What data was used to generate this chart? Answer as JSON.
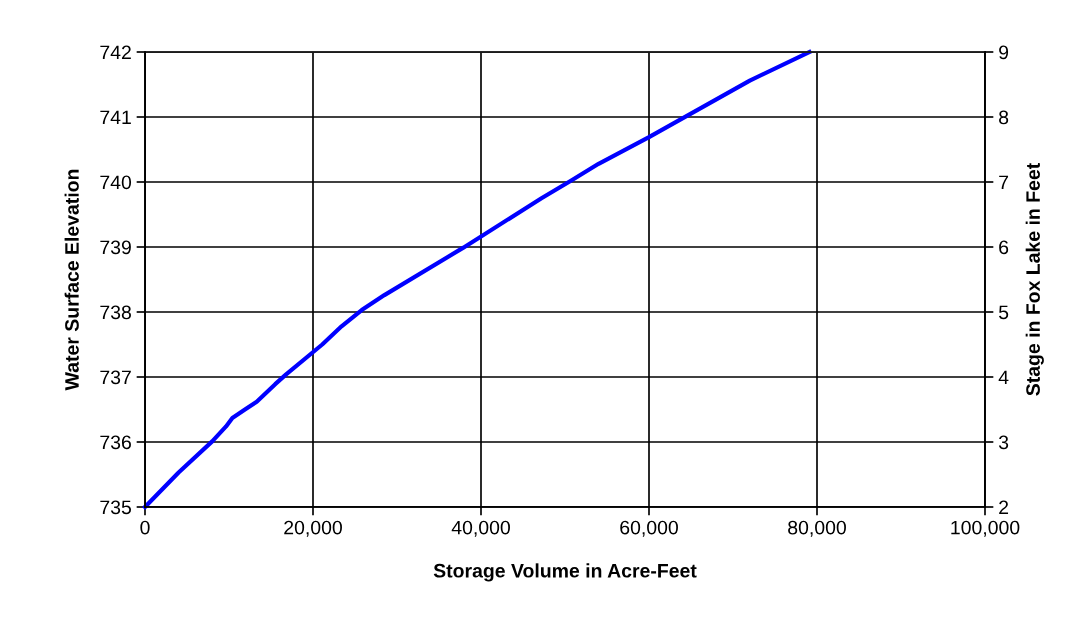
{
  "chart_data": {
    "type": "line",
    "xlabel": "Storage Volume in Acre-Feet",
    "ylabel": "Water Surface Elevation",
    "y2label": "Stage in Fox Lake in Feet",
    "x": [
      0,
      4000,
      8000,
      9650,
      10400,
      11900,
      13300,
      15500,
      16800,
      21100,
      23400,
      25800,
      28500,
      37900,
      47200,
      50700,
      54000,
      60000,
      72000,
      79100
    ],
    "series": [
      {
        "color": "#0000ff",
        "values": [
          735,
          735.53,
          736.01,
          736.24,
          736.37,
          736.5,
          736.62,
          736.89,
          737.04,
          737.5,
          737.78,
          738.03,
          738.26,
          738.99,
          739.75,
          740.02,
          740.28,
          740.69,
          741.56,
          742
        ]
      }
    ],
    "xlim": [
      0,
      100000
    ],
    "xticks": [
      0,
      {
        "value": 20000,
        "label": "20,000"
      },
      {
        "value": 40000,
        "label": "40,000"
      },
      {
        "value": 60000,
        "label": "60,000"
      },
      {
        "value": 80000,
        "label": "80,000"
      },
      {
        "value": 100000,
        "label": "100,000"
      }
    ],
    "ylim": [
      735,
      742
    ],
    "yticks": [
      735,
      736,
      737,
      738,
      739,
      740,
      741,
      742
    ],
    "y2lim": [
      2,
      9
    ],
    "y2ticks": [
      2,
      3,
      4,
      5,
      6,
      7,
      8,
      9
    ],
    "grid": true,
    "marker": "none",
    "line_style": "solid"
  }
}
